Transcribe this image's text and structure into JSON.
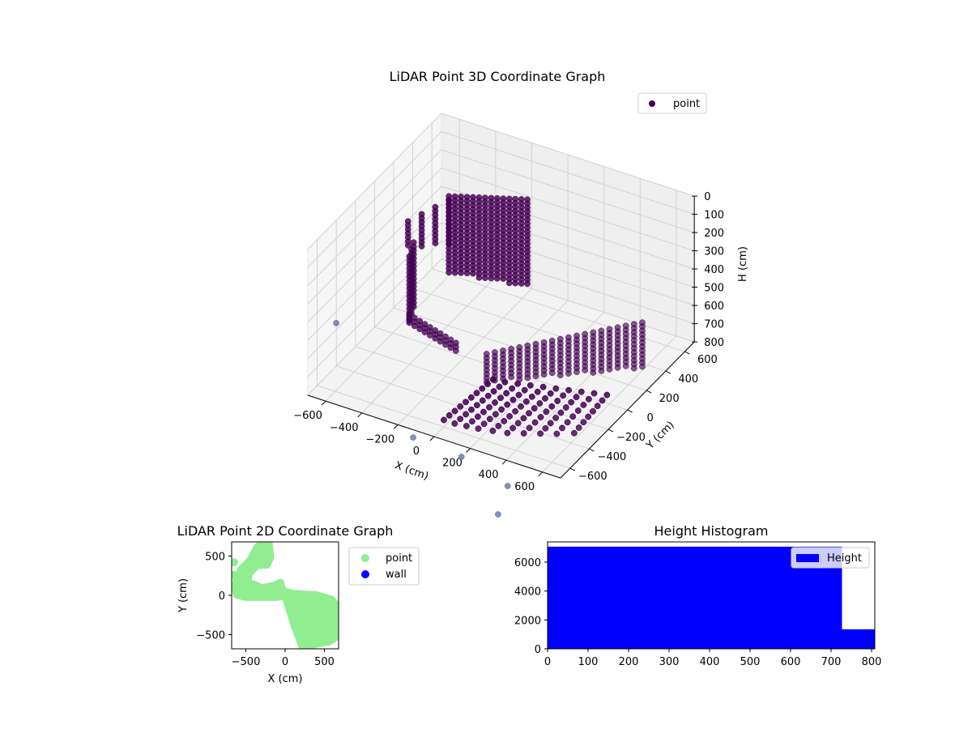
{
  "chart_data": [
    {
      "type": "scatter3d",
      "title": "LiDAR Point 3D Coordinate Graph",
      "xlabel": "X (cm)",
      "ylabel": "Y (cm)",
      "zlabel": "H (cm)",
      "xlim": [
        -700,
        700
      ],
      "ylim": [
        -700,
        700
      ],
      "zlim": [
        800,
        0
      ],
      "xticks": [
        "-600",
        "-400",
        "-200",
        "0",
        "200",
        "400",
        "600"
      ],
      "yticks": [
        "-600",
        "-400",
        "-200",
        "0",
        "200",
        "400",
        "600"
      ],
      "zticks": [
        "0",
        "100",
        "200",
        "300",
        "400",
        "500",
        "600",
        "700",
        "800"
      ],
      "legend": {
        "position": "top-right",
        "entries": [
          "point"
        ]
      },
      "colors": {
        "point": "#440154",
        "outlier": "#5b6aa3"
      },
      "point_walls": [
        {
          "from": [
            -500,
            400
          ],
          "to": [
            -150,
            560
          ],
          "h_top": [
            230,
            220
          ],
          "h_bottom": [
            650,
            700
          ],
          "columns": 14
        },
        {
          "from": [
            -620,
            200
          ],
          "to": [
            -500,
            400
          ],
          "h_top": [
            300,
            250
          ],
          "h_bottom": [
            450,
            500
          ],
          "columns": 4
        },
        {
          "from": [
            -560,
            100
          ],
          "to": [
            -600,
            220
          ],
          "h_top": [
            420,
            420
          ],
          "h_bottom": [
            780,
            780
          ],
          "columns": 3
        },
        {
          "from": [
            -560,
            100
          ],
          "to": [
            -250,
            0
          ],
          "h_top": [
            740,
            740
          ],
          "h_bottom": [
            800,
            800
          ],
          "columns": 10
        },
        {
          "from": [
            0,
            -150
          ],
          "to": [
            650,
            250
          ],
          "h_top": [
            640,
            470
          ],
          "h_bottom": [
            800,
            720
          ],
          "columns": 20
        },
        {
          "from": [
            20,
            -120
          ],
          "to": [
            -20,
            -560
          ],
          "h_top": [
            790,
            790
          ],
          "h_bottom": [
            790,
            790
          ],
          "columns": 10
        },
        {
          "from": [
            80,
            -110
          ],
          "to": [
            40,
            -560
          ],
          "h_top": [
            790,
            790
          ],
          "h_bottom": [
            790,
            790
          ],
          "columns": 10
        },
        {
          "from": [
            140,
            -90
          ],
          "to": [
            100,
            -550
          ],
          "h_top": [
            790,
            790
          ],
          "h_bottom": [
            790,
            790
          ],
          "columns": 10
        },
        {
          "from": [
            200,
            -70
          ],
          "to": [
            160,
            -540
          ],
          "h_top": [
            790,
            790
          ],
          "h_bottom": [
            790,
            790
          ],
          "columns": 10
        },
        {
          "from": [
            260,
            -50
          ],
          "to": [
            230,
            -520
          ],
          "h_top": [
            790,
            790
          ],
          "h_bottom": [
            790,
            790
          ],
          "columns": 10
        },
        {
          "from": [
            320,
            -30
          ],
          "to": [
            300,
            -500
          ],
          "h_top": [
            790,
            790
          ],
          "h_bottom": [
            790,
            790
          ],
          "columns": 10
        },
        {
          "from": [
            380,
            -10
          ],
          "to": [
            370,
            -460
          ],
          "h_top": [
            790,
            790
          ],
          "h_bottom": [
            790,
            790
          ],
          "columns": 9
        },
        {
          "from": [
            440,
            10
          ],
          "to": [
            440,
            -420
          ],
          "h_top": [
            790,
            790
          ],
          "h_bottom": [
            790,
            790
          ],
          "columns": 9
        },
        {
          "from": [
            500,
            30
          ],
          "to": [
            510,
            -380
          ],
          "h_top": [
            790,
            790
          ],
          "h_bottom": [
            790,
            790
          ],
          "columns": 8
        },
        {
          "from": [
            560,
            50
          ],
          "to": [
            580,
            -330
          ],
          "h_top": [
            790,
            790
          ],
          "h_bottom": [
            790,
            790
          ],
          "columns": 8
        }
      ],
      "outliers": [
        [
          -727,
          -350,
          600
        ],
        [
          -84,
          -760,
          800
        ],
        [
          198,
          -788,
          800
        ],
        [
          512,
          -897,
          800
        ],
        [
          588,
          -1142,
          800
        ]
      ]
    },
    {
      "type": "scatter",
      "title": "LiDAR Point 2D Coordinate Graph",
      "xlabel": "X (cm)",
      "ylabel": "Y (cm)",
      "xlim": [
        -680,
        680
      ],
      "ylim": [
        -680,
        680
      ],
      "xticks": [
        -500,
        0,
        500
      ],
      "yticks": [
        -500,
        0,
        500
      ],
      "legend": {
        "position": "outside-right",
        "entries": [
          {
            "label": "point",
            "color": "#90ee90"
          },
          {
            "label": "wall",
            "color": "#0000ff"
          }
        ]
      },
      "point_regions": [
        [
          [
            -20,
            60
          ],
          [
            100,
            30
          ],
          [
            400,
            10
          ],
          [
            600,
            -50
          ],
          [
            680,
            -150
          ],
          [
            680,
            -500
          ],
          [
            620,
            -560
          ],
          [
            550,
            -600
          ],
          [
            400,
            -620
          ],
          [
            300,
            -680
          ],
          [
            220,
            -680
          ],
          [
            100,
            -350
          ],
          [
            0,
            -30
          ]
        ],
        [
          [
            -620,
            150
          ],
          [
            -400,
            150
          ],
          [
            -300,
            100
          ],
          [
            -150,
            130
          ],
          [
            -60,
            170
          ],
          [
            -20,
            60
          ],
          [
            0,
            0
          ],
          [
            -100,
            -30
          ],
          [
            -300,
            -30
          ],
          [
            -500,
            -30
          ],
          [
            -620,
            0
          ],
          [
            -645,
            100
          ]
        ],
        [
          [
            -640,
            150
          ],
          [
            -570,
            330
          ],
          [
            -450,
            450
          ],
          [
            -360,
            620
          ],
          [
            -280,
            680
          ],
          [
            -200,
            660
          ],
          [
            -180,
            480
          ],
          [
            -230,
            380
          ],
          [
            -350,
            380
          ],
          [
            -450,
            280
          ],
          [
            -480,
            150
          ]
        ]
      ],
      "point_blobs": [
        [
          -650,
          420
        ],
        [
          -655,
          260
        ]
      ]
    },
    {
      "type": "bar",
      "title": "Height Histogram",
      "xlim": [
        0,
        808
      ],
      "ylim": [
        0,
        7400
      ],
      "xticks": [
        0,
        100,
        200,
        300,
        400,
        500,
        600,
        700,
        800
      ],
      "yticks": [
        0,
        2000,
        4000,
        6000
      ],
      "bins": [
        [
          0,
          727
        ],
        [
          727,
          808
        ]
      ],
      "values": [
        7070,
        1350
      ],
      "color": "#0000ff",
      "legend": {
        "position": "top-right",
        "entries": [
          "Height"
        ]
      }
    }
  ]
}
